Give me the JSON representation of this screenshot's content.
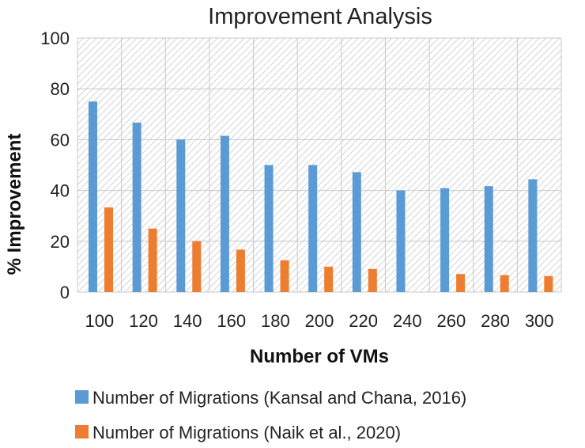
{
  "chart_data": {
    "type": "bar",
    "title": "Improvement Analysis",
    "xlabel": "Number of VMs",
    "ylabel": "% Improvement",
    "categories": [
      "100",
      "120",
      "140",
      "160",
      "180",
      "200",
      "220",
      "240",
      "260",
      "280",
      "300"
    ],
    "series": [
      {
        "name": "Number of Migrations (Kansal and Chana, 2016)",
        "color": "#5b9bd5",
        "values": [
          75,
          66.7,
          60,
          61.5,
          50,
          50,
          47.2,
          40,
          40.9,
          41.7,
          44.4
        ]
      },
      {
        "name": "Number of Migrations (Naik et al., 2020)",
        "color": "#ed7d31",
        "values": [
          33.3,
          25,
          20,
          16.7,
          12.5,
          10,
          9.1,
          0,
          7.1,
          6.7,
          6.3
        ]
      }
    ],
    "ylim": [
      0,
      100
    ],
    "yticks": [
      "0",
      "20",
      "40",
      "60",
      "80",
      "100"
    ],
    "grid": true,
    "background": "hatched",
    "legend_position": "bottom"
  }
}
